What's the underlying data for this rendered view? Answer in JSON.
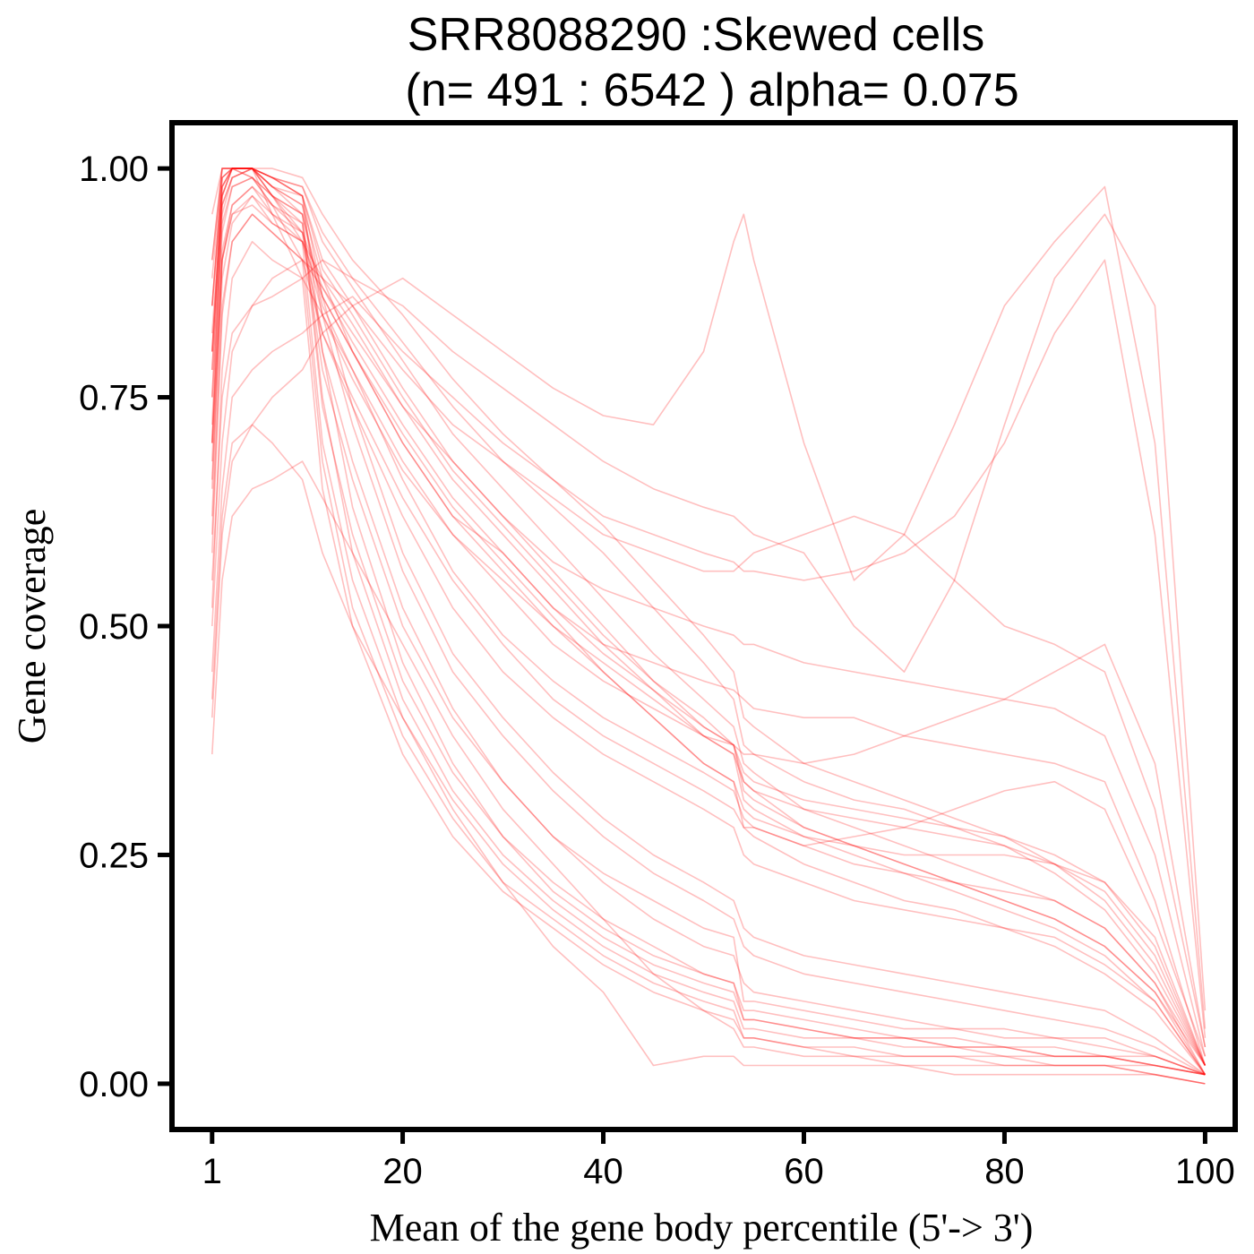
{
  "chart_data": {
    "type": "line",
    "title_line1": "SRR8088290 :Skewed cells",
    "title_line2": "(n= 491 : 6542 ) alpha= 0.075",
    "xlabel": "Mean of the gene body percentile (5'-> 3')",
    "ylabel": "Gene coverage",
    "xlim": [
      -3,
      103
    ],
    "ylim": [
      -0.05,
      1.05
    ],
    "x_ticks": [
      1,
      20,
      40,
      60,
      80,
      100
    ],
    "x_tick_labels": [
      "1",
      "20",
      "40",
      "60",
      "80",
      "100"
    ],
    "y_ticks": [
      0,
      0.25,
      0.5,
      0.75,
      1.0
    ],
    "y_tick_labels": [
      "0.00",
      "0.25",
      "0.50",
      "0.75",
      "1.00"
    ],
    "line_color": "#ff0000",
    "line_alpha": 0.25,
    "grid": false,
    "legend": "none",
    "n_cells": 491,
    "n_total": 6542,
    "alpha": 0.075,
    "x": [
      1,
      2,
      3,
      5,
      7,
      10,
      12,
      15,
      20,
      25,
      30,
      35,
      40,
      45,
      50,
      53,
      54,
      55,
      60,
      65,
      70,
      75,
      80,
      85,
      90,
      95,
      100
    ],
    "series": [
      {
        "values": [
          0.8,
          0.98,
          1.0,
          1.0,
          0.97,
          0.92,
          0.7,
          0.55,
          0.4,
          0.31,
          0.24,
          0.19,
          0.15,
          0.12,
          0.1,
          0.09,
          0.06,
          0.06,
          0.05,
          0.05,
          0.04,
          0.04,
          0.03,
          0.03,
          0.03,
          0.02,
          0.01
        ]
      },
      {
        "values": [
          0.85,
          0.99,
          1.0,
          1.0,
          0.98,
          0.95,
          0.75,
          0.58,
          0.42,
          0.32,
          0.25,
          0.2,
          0.16,
          0.13,
          0.11,
          0.1,
          0.07,
          0.07,
          0.06,
          0.05,
          0.05,
          0.04,
          0.04,
          0.03,
          0.03,
          0.02,
          0.01
        ]
      },
      {
        "values": [
          0.75,
          0.97,
          1.0,
          0.99,
          0.96,
          0.9,
          0.68,
          0.52,
          0.38,
          0.29,
          0.22,
          0.18,
          0.14,
          0.11,
          0.09,
          0.08,
          0.05,
          0.05,
          0.04,
          0.04,
          0.03,
          0.03,
          0.03,
          0.02,
          0.02,
          0.02,
          0.01
        ]
      },
      {
        "values": [
          0.9,
          1.0,
          1.0,
          1.0,
          0.99,
          0.97,
          0.8,
          0.63,
          0.46,
          0.35,
          0.27,
          0.22,
          0.18,
          0.15,
          0.12,
          0.11,
          0.08,
          0.08,
          0.07,
          0.06,
          0.05,
          0.05,
          0.04,
          0.04,
          0.03,
          0.03,
          0.01
        ]
      },
      {
        "values": [
          0.7,
          0.96,
          0.99,
          1.0,
          0.95,
          0.88,
          0.65,
          0.5,
          0.36,
          0.27,
          0.21,
          0.17,
          0.13,
          0.1,
          0.08,
          0.07,
          0.05,
          0.05,
          0.04,
          0.03,
          0.03,
          0.03,
          0.02,
          0.02,
          0.02,
          0.01,
          0.0
        ]
      },
      {
        "values": [
          0.85,
          0.99,
          1.0,
          1.0,
          0.99,
          0.97,
          0.9,
          0.85,
          0.76,
          0.68,
          0.62,
          0.56,
          0.5,
          0.44,
          0.4,
          0.37,
          0.33,
          0.32,
          0.28,
          0.26,
          0.24,
          0.22,
          0.2,
          0.18,
          0.15,
          0.1,
          0.02
        ]
      },
      {
        "values": [
          0.8,
          0.98,
          1.0,
          1.0,
          0.98,
          0.96,
          0.88,
          0.83,
          0.74,
          0.66,
          0.6,
          0.54,
          0.48,
          0.43,
          0.38,
          0.36,
          0.31,
          0.3,
          0.27,
          0.25,
          0.23,
          0.21,
          0.19,
          0.17,
          0.14,
          0.09,
          0.01
        ]
      },
      {
        "values": [
          0.88,
          1.0,
          1.0,
          1.0,
          0.99,
          0.98,
          0.92,
          0.87,
          0.79,
          0.71,
          0.65,
          0.59,
          0.53,
          0.47,
          0.42,
          0.39,
          0.35,
          0.34,
          0.3,
          0.28,
          0.26,
          0.24,
          0.22,
          0.2,
          0.17,
          0.11,
          0.02
        ]
      },
      {
        "values": [
          0.78,
          0.97,
          1.0,
          0.99,
          0.97,
          0.95,
          0.86,
          0.8,
          0.71,
          0.63,
          0.57,
          0.51,
          0.45,
          0.4,
          0.35,
          0.33,
          0.28,
          0.27,
          0.24,
          0.22,
          0.2,
          0.19,
          0.17,
          0.15,
          0.12,
          0.08,
          0.01
        ]
      },
      {
        "values": [
          0.82,
          0.98,
          1.0,
          1.0,
          0.98,
          0.97,
          0.89,
          0.84,
          0.75,
          0.67,
          0.61,
          0.55,
          0.49,
          0.44,
          0.39,
          0.37,
          0.32,
          0.31,
          0.28,
          0.26,
          0.24,
          0.22,
          0.2,
          0.18,
          0.15,
          0.1,
          0.01
        ]
      },
      {
        "values": [
          0.65,
          0.9,
          0.95,
          0.97,
          0.94,
          0.92,
          0.88,
          0.8,
          0.7,
          0.62,
          0.58,
          0.52,
          0.48,
          0.46,
          0.44,
          0.43,
          0.42,
          0.41,
          0.4,
          0.4,
          0.38,
          0.37,
          0.36,
          0.35,
          0.33,
          0.2,
          0.02
        ]
      },
      {
        "values": [
          0.6,
          0.85,
          0.92,
          0.95,
          0.93,
          0.9,
          0.87,
          0.82,
          0.74,
          0.68,
          0.62,
          0.57,
          0.54,
          0.52,
          0.5,
          0.49,
          0.48,
          0.48,
          0.46,
          0.45,
          0.44,
          0.43,
          0.42,
          0.41,
          0.38,
          0.25,
          0.03
        ]
      },
      {
        "values": [
          0.5,
          0.7,
          0.8,
          0.85,
          0.88,
          0.9,
          0.88,
          0.85,
          0.78,
          0.72,
          0.68,
          0.64,
          0.6,
          0.58,
          0.56,
          0.56,
          0.57,
          0.58,
          0.6,
          0.62,
          0.6,
          0.55,
          0.5,
          0.48,
          0.45,
          0.3,
          0.04
        ]
      },
      {
        "values": [
          0.45,
          0.65,
          0.75,
          0.78,
          0.8,
          0.82,
          0.84,
          0.86,
          0.8,
          0.75,
          0.7,
          0.66,
          0.62,
          0.6,
          0.58,
          0.57,
          0.56,
          0.56,
          0.55,
          0.56,
          0.58,
          0.62,
          0.7,
          0.82,
          0.9,
          0.6,
          0.05
        ]
      },
      {
        "values": [
          0.55,
          0.75,
          0.82,
          0.85,
          0.86,
          0.88,
          0.9,
          0.88,
          0.85,
          0.8,
          0.76,
          0.72,
          0.68,
          0.65,
          0.63,
          0.62,
          0.61,
          0.6,
          0.58,
          0.5,
          0.45,
          0.55,
          0.72,
          0.88,
          0.95,
          0.85,
          0.08
        ]
      },
      {
        "values": [
          0.4,
          0.6,
          0.68,
          0.72,
          0.75,
          0.78,
          0.82,
          0.85,
          0.88,
          0.84,
          0.8,
          0.76,
          0.73,
          0.72,
          0.8,
          0.92,
          0.95,
          0.9,
          0.7,
          0.55,
          0.6,
          0.72,
          0.85,
          0.92,
          0.98,
          0.7,
          0.06
        ]
      },
      {
        "values": [
          0.7,
          0.9,
          0.95,
          0.96,
          0.94,
          0.92,
          0.82,
          0.74,
          0.62,
          0.52,
          0.45,
          0.4,
          0.36,
          0.33,
          0.3,
          0.28,
          0.25,
          0.24,
          0.22,
          0.2,
          0.19,
          0.18,
          0.17,
          0.16,
          0.13,
          0.09,
          0.01
        ]
      },
      {
        "values": [
          0.75,
          0.94,
          0.98,
          0.99,
          0.97,
          0.95,
          0.85,
          0.78,
          0.66,
          0.56,
          0.49,
          0.44,
          0.4,
          0.37,
          0.34,
          0.32,
          0.29,
          0.28,
          0.26,
          0.24,
          0.23,
          0.22,
          0.21,
          0.2,
          0.17,
          0.11,
          0.01
        ]
      },
      {
        "values": [
          0.8,
          0.97,
          1.0,
          1.0,
          0.98,
          0.96,
          0.84,
          0.72,
          0.56,
          0.45,
          0.38,
          0.32,
          0.27,
          0.23,
          0.2,
          0.18,
          0.15,
          0.14,
          0.12,
          0.11,
          0.1,
          0.09,
          0.08,
          0.07,
          0.06,
          0.04,
          0.01
        ]
      },
      {
        "values": [
          0.85,
          0.99,
          1.0,
          1.0,
          0.99,
          0.97,
          0.86,
          0.74,
          0.58,
          0.47,
          0.4,
          0.34,
          0.29,
          0.25,
          0.22,
          0.2,
          0.17,
          0.16,
          0.14,
          0.13,
          0.12,
          0.11,
          0.1,
          0.09,
          0.08,
          0.05,
          0.01
        ]
      },
      {
        "values": [
          0.72,
          0.95,
          0.99,
          1.0,
          0.97,
          0.93,
          0.78,
          0.66,
          0.5,
          0.4,
          0.33,
          0.27,
          0.22,
          0.18,
          0.15,
          0.14,
          0.11,
          0.1,
          0.09,
          0.08,
          0.07,
          0.06,
          0.06,
          0.05,
          0.05,
          0.03,
          0.01
        ]
      },
      {
        "values": [
          0.9,
          1.0,
          1.0,
          1.0,
          0.99,
          0.98,
          0.93,
          0.88,
          0.81,
          0.74,
          0.68,
          0.63,
          0.58,
          0.52,
          0.46,
          0.42,
          0.37,
          0.36,
          0.33,
          0.31,
          0.3,
          0.28,
          0.26,
          0.23,
          0.19,
          0.12,
          0.02
        ]
      },
      {
        "values": [
          0.7,
          0.93,
          0.98,
          0.99,
          0.96,
          0.93,
          0.84,
          0.77,
          0.67,
          0.6,
          0.55,
          0.5,
          0.46,
          0.42,
          0.38,
          0.36,
          0.33,
          0.32,
          0.3,
          0.29,
          0.28,
          0.27,
          0.26,
          0.24,
          0.21,
          0.14,
          0.02
        ]
      },
      {
        "values": [
          0.62,
          0.88,
          0.94,
          0.97,
          0.95,
          0.92,
          0.86,
          0.8,
          0.7,
          0.62,
          0.56,
          0.5,
          0.45,
          0.4,
          0.35,
          0.33,
          0.3,
          0.29,
          0.27,
          0.26,
          0.25,
          0.25,
          0.25,
          0.24,
          0.22,
          0.16,
          0.02
        ]
      },
      {
        "values": [
          0.68,
          0.91,
          0.96,
          0.98,
          0.96,
          0.94,
          0.8,
          0.68,
          0.52,
          0.41,
          0.33,
          0.27,
          0.23,
          0.2,
          0.17,
          0.16,
          0.09,
          0.09,
          0.08,
          0.07,
          0.06,
          0.06,
          0.05,
          0.05,
          0.04,
          0.03,
          0.01
        ]
      },
      {
        "values": [
          0.58,
          0.84,
          0.92,
          0.95,
          0.93,
          0.9,
          0.82,
          0.75,
          0.64,
          0.55,
          0.48,
          0.42,
          0.38,
          0.35,
          0.32,
          0.3,
          0.28,
          0.28,
          0.26,
          0.27,
          0.28,
          0.3,
          0.32,
          0.33,
          0.3,
          0.18,
          0.03
        ]
      },
      {
        "values": [
          0.52,
          0.78,
          0.88,
          0.92,
          0.9,
          0.88,
          0.84,
          0.78,
          0.68,
          0.6,
          0.54,
          0.48,
          0.44,
          0.41,
          0.38,
          0.37,
          0.36,
          0.36,
          0.35,
          0.36,
          0.38,
          0.4,
          0.42,
          0.45,
          0.48,
          0.35,
          0.04
        ]
      },
      {
        "values": [
          0.36,
          0.55,
          0.62,
          0.65,
          0.66,
          0.68,
          0.64,
          0.58,
          0.48,
          0.38,
          0.3,
          0.24,
          0.18,
          0.12,
          0.08,
          0.06,
          0.04,
          0.04,
          0.03,
          0.03,
          0.02,
          0.02,
          0.02,
          0.02,
          0.02,
          0.01,
          0.0
        ]
      },
      {
        "values": [
          0.42,
          0.62,
          0.7,
          0.72,
          0.7,
          0.66,
          0.58,
          0.5,
          0.4,
          0.3,
          0.22,
          0.15,
          0.1,
          0.02,
          0.03,
          0.03,
          0.02,
          0.02,
          0.02,
          0.02,
          0.02,
          0.01,
          0.01,
          0.01,
          0.01,
          0.01,
          0.0
        ]
      },
      {
        "values": [
          0.95,
          1.0,
          1.0,
          1.0,
          1.0,
          0.99,
          0.95,
          0.9,
          0.84,
          0.77,
          0.71,
          0.66,
          0.61,
          0.55,
          0.49,
          0.45,
          0.4,
          0.39,
          0.35,
          0.33,
          0.31,
          0.29,
          0.27,
          0.24,
          0.2,
          0.13,
          0.02
        ]
      },
      {
        "values": [
          0.78,
          0.96,
          0.99,
          1.0,
          0.97,
          0.94,
          0.74,
          0.6,
          0.44,
          0.34,
          0.27,
          0.21,
          0.17,
          0.14,
          0.12,
          0.11,
          0.07,
          0.07,
          0.06,
          0.05,
          0.05,
          0.04,
          0.04,
          0.03,
          0.03,
          0.02,
          0.01
        ]
      },
      {
        "values": [
          0.66,
          0.9,
          0.96,
          0.98,
          0.95,
          0.93,
          0.87,
          0.81,
          0.72,
          0.64,
          0.58,
          0.52,
          0.47,
          0.43,
          0.39,
          0.37,
          0.34,
          0.33,
          0.31,
          0.3,
          0.29,
          0.28,
          0.27,
          0.25,
          0.22,
          0.15,
          0.02
        ]
      }
    ]
  }
}
